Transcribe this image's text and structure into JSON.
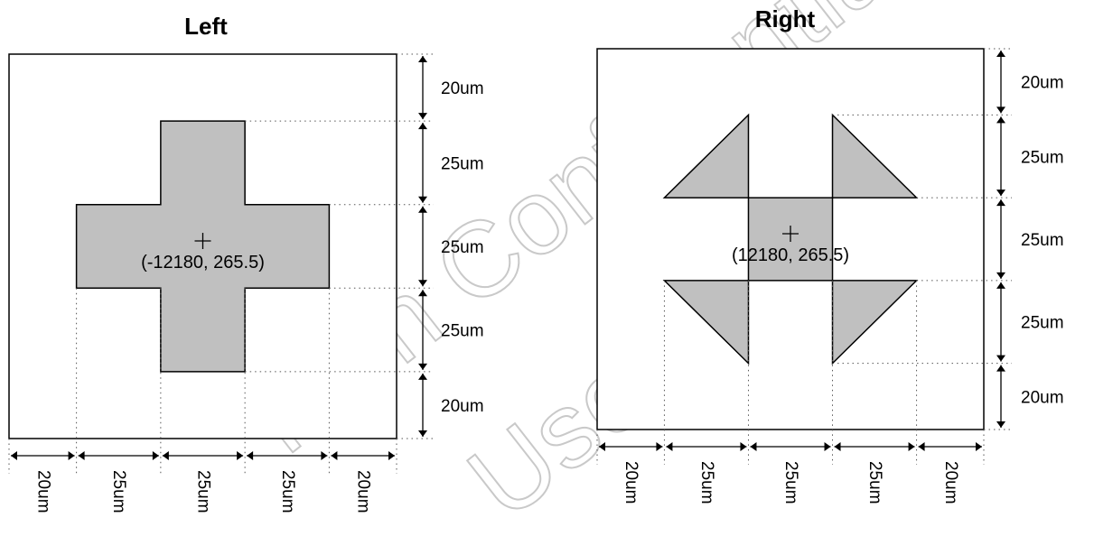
{
  "panels": [
    {
      "id": "left",
      "title": "Left",
      "shape": "cross",
      "center_label": "(-12180, 265.5)",
      "vertical_dims": [
        "20um",
        "25um",
        "25um",
        "25um",
        "20um"
      ],
      "horizontal_dims": [
        "20um",
        "25um",
        "25um",
        "25um",
        "20um"
      ]
    },
    {
      "id": "right",
      "title": "Right",
      "shape": "pinwheel",
      "center_label": "(12180, 265.5)",
      "vertical_dims": [
        "20um",
        "25um",
        "25um",
        "25um",
        "20um"
      ],
      "horizontal_dims": [
        "20um",
        "25um",
        "25um",
        "25um",
        "20um"
      ]
    }
  ],
  "watermark": {
    "lines": [
      "Tech Confidential",
      "Use Only"
    ]
  },
  "colors": {
    "shape_fill": "#c0c0c0",
    "line": "#000000",
    "guide": "#555555",
    "watermark": "#c9c9c9"
  }
}
